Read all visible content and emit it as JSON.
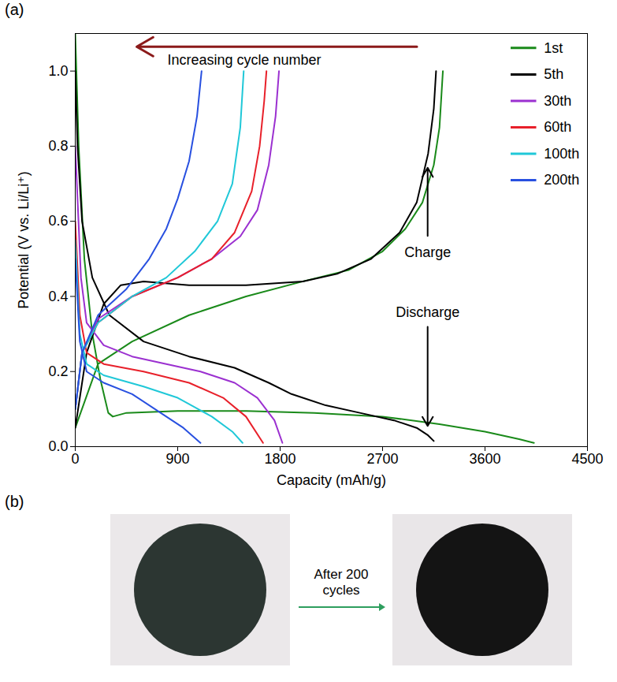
{
  "chart_data": {
    "type": "line",
    "panel_label": "(a)",
    "x_label": "Capacity (mAh/g)",
    "y_label": "Potential (V vs. Li/Li⁺)",
    "xlim": [
      0,
      4500
    ],
    "xticks": [
      0,
      900,
      1800,
      2700,
      3600,
      4500
    ],
    "ylim": [
      0,
      1.1
    ],
    "yticks": [
      {
        "value": 0,
        "label": "0.0"
      },
      0.2,
      0.4,
      0.6,
      0.8,
      {
        "value": 1,
        "label": "1.0"
      }
    ],
    "grid": false,
    "legend": "upper right",
    "annotations": [
      "Increasing cycle number",
      "Charge",
      "Discharge"
    ],
    "series": [
      {
        "name": "1st",
        "color": "#1a8a1a",
        "x": [
          0,
          30,
          80,
          150,
          220,
          290,
          330,
          450,
          900,
          1500,
          2100,
          2700,
          3200,
          3600,
          3900,
          4030,
          null,
          0,
          200,
          500,
          1000,
          1500,
          2000,
          2400,
          2700,
          2900,
          3050,
          3150,
          3200,
          3230
        ],
        "values": [
          1.1,
          0.8,
          0.5,
          0.3,
          0.18,
          0.09,
          0.08,
          0.09,
          0.095,
          0.095,
          0.09,
          0.08,
          0.06,
          0.04,
          0.02,
          0.01,
          null,
          0.05,
          0.22,
          0.28,
          0.35,
          0.4,
          0.44,
          0.47,
          0.52,
          0.58,
          0.65,
          0.75,
          0.85,
          1.0
        ]
      },
      {
        "name": "5th",
        "color": "#000000",
        "x": [
          0,
          20,
          60,
          150,
          300,
          600,
          1000,
          1400,
          1700,
          1900,
          2200,
          2500,
          2800,
          3000,
          3100,
          3150,
          null,
          0,
          100,
          250,
          400,
          600,
          1000,
          1500,
          2000,
          2300,
          2600,
          2850,
          3000,
          3100,
          3150,
          3170
        ],
        "values": [
          1.0,
          0.8,
          0.6,
          0.45,
          0.35,
          0.28,
          0.24,
          0.21,
          0.17,
          0.14,
          0.11,
          0.09,
          0.07,
          0.05,
          0.03,
          0.015,
          null,
          0.05,
          0.25,
          0.38,
          0.43,
          0.44,
          0.43,
          0.43,
          0.44,
          0.46,
          0.5,
          0.57,
          0.65,
          0.78,
          0.9,
          1.0
        ]
      },
      {
        "name": "30th",
        "color": "#9b30d0",
        "x": [
          0,
          50,
          100,
          250,
          500,
          800,
          1100,
          1400,
          1600,
          1750,
          1820,
          null,
          0,
          60,
          200,
          500,
          900,
          1200,
          1450,
          1600,
          1700,
          1760,
          1790
        ],
        "values": [
          0.8,
          0.45,
          0.33,
          0.27,
          0.24,
          0.22,
          0.2,
          0.17,
          0.13,
          0.07,
          0.01,
          null,
          0.1,
          0.25,
          0.34,
          0.4,
          0.45,
          0.5,
          0.56,
          0.63,
          0.75,
          0.88,
          1.0
        ]
      },
      {
        "name": "60th",
        "color": "#e8202a",
        "x": [
          0,
          40,
          100,
          250,
          600,
          1000,
          1300,
          1500,
          1650,
          null,
          0,
          60,
          200,
          500,
          900,
          1200,
          1400,
          1550,
          1620,
          1660,
          1680
        ],
        "values": [
          0.6,
          0.35,
          0.25,
          0.22,
          0.2,
          0.17,
          0.13,
          0.08,
          0.01,
          null,
          0.1,
          0.25,
          0.33,
          0.4,
          0.45,
          0.5,
          0.57,
          0.68,
          0.8,
          0.92,
          1.0
        ]
      },
      {
        "name": "100th",
        "color": "#20c8d8",
        "x": [
          0,
          40,
          100,
          250,
          600,
          900,
          1200,
          1380,
          1470,
          null,
          0,
          60,
          200,
          500,
          800,
          1050,
          1250,
          1380,
          1450,
          1480
        ],
        "values": [
          0.55,
          0.3,
          0.22,
          0.19,
          0.16,
          0.13,
          0.08,
          0.04,
          0.01,
          null,
          0.1,
          0.25,
          0.33,
          0.4,
          0.45,
          0.52,
          0.6,
          0.7,
          0.85,
          1.0
        ]
      },
      {
        "name": "200th",
        "color": "#2850e0",
        "x": [
          0,
          40,
          100,
          250,
          500,
          750,
          950,
          1100,
          null,
          0,
          60,
          200,
          450,
          650,
          800,
          900,
          1000,
          1070,
          1110
        ],
        "values": [
          0.5,
          0.28,
          0.2,
          0.17,
          0.14,
          0.09,
          0.05,
          0.01,
          null,
          0.1,
          0.25,
          0.35,
          0.42,
          0.5,
          0.58,
          0.66,
          0.76,
          0.88,
          1.0
        ]
      }
    ]
  },
  "image_panel": {
    "panel_label": "(b)",
    "arrow_text": "After 200 cycles"
  }
}
